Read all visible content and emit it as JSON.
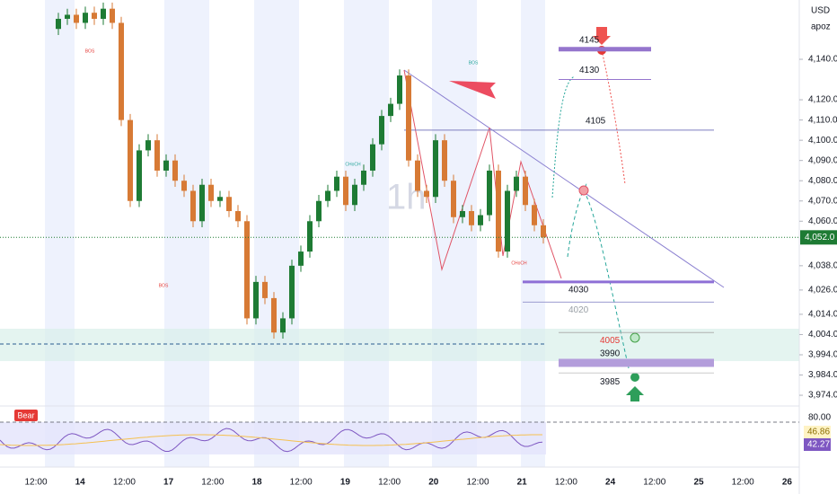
{
  "header": {
    "currency": "USD",
    "symbol": "apoz"
  },
  "chart_data": {
    "type": "candlestick",
    "open": [
      4155,
      4160,
      4162,
      4158,
      4163,
      4160,
      4165,
      4158,
      4110,
      4070,
      4095,
      4100,
      4085,
      4090,
      4080,
      4075,
      4060,
      4078,
      4070,
      4072,
      4065,
      4060,
      4012,
      4030,
      4022,
      4005,
      4012,
      4038,
      4045,
      4060,
      4070,
      4075,
      4082,
      4068,
      4078,
      4085,
      4098,
      4112,
      4118,
      4132,
      4090,
      4075,
      4072,
      4100,
      4080,
      4062,
      4065,
      4058,
      4063,
      4085,
      4045,
      4075,
      4082,
      4068,
      4058
    ],
    "high": [
      4163,
      4165,
      4165,
      4166,
      4166,
      4168,
      4168,
      4161,
      4113,
      4098,
      4103,
      4103,
      4093,
      4093,
      4083,
      4078,
      4081,
      4081,
      4075,
      4075,
      4068,
      4063,
      4033,
      4033,
      4025,
      4015,
      4041,
      4048,
      4063,
      4073,
      4078,
      4085,
      4085,
      4081,
      4088,
      4101,
      4115,
      4121,
      4135,
      4135,
      4093,
      4078,
      4103,
      4103,
      4083,
      4068,
      4068,
      4066,
      4088,
      4088,
      4078,
      4085,
      4085,
      4071,
      4061
    ],
    "low": [
      4152,
      4157,
      4155,
      4155,
      4157,
      4157,
      4155,
      4107,
      4067,
      4067,
      4092,
      4082,
      4082,
      4077,
      4072,
      4057,
      4057,
      4067,
      4067,
      4062,
      4057,
      4009,
      4009,
      4019,
      4002,
      4002,
      4009,
      4035,
      4042,
      4057,
      4067,
      4072,
      4065,
      4065,
      4075,
      4082,
      4095,
      4109,
      4115,
      4087,
      4072,
      4069,
      4069,
      4077,
      4059,
      4059,
      4055,
      4055,
      4060,
      4042,
      4042,
      4072,
      4065,
      4055,
      4049
    ],
    "close": [
      4160,
      4162,
      4158,
      4163,
      4160,
      4165,
      4158,
      4110,
      4070,
      4095,
      4100,
      4085,
      4090,
      4080,
      4075,
      4060,
      4078,
      4070,
      4072,
      4065,
      4060,
      4012,
      4030,
      4022,
      4005,
      4012,
      4038,
      4045,
      4060,
      4070,
      4075,
      4082,
      4068,
      4078,
      4085,
      4098,
      4112,
      4118,
      4132,
      4090,
      4075,
      4072,
      4100,
      4080,
      4062,
      4065,
      4058,
      4063,
      4085,
      4045,
      4075,
      4082,
      4068,
      4058,
      4052
    ],
    "up_color": "#1e7b34",
    "down_color": "#d77a35",
    "ylim": [
      3968.7,
      4169.3
    ],
    "yticks": [
      {
        "value": 4140,
        "label": "4,140.0"
      },
      {
        "value": 4120,
        "label": "4,120.0"
      },
      {
        "value": 4110,
        "label": "4,110.0"
      },
      {
        "value": 4100,
        "label": "4,100.0"
      },
      {
        "value": 4090,
        "label": "4,090.0"
      },
      {
        "value": 4080,
        "label": "4,080.0"
      },
      {
        "value": 4070,
        "label": "4,070.0"
      },
      {
        "value": 4060,
        "label": "4,060.0"
      },
      {
        "value": 4038,
        "label": "4,038.0"
      },
      {
        "value": 4026,
        "label": "4,026.0"
      },
      {
        "value": 4014,
        "label": "4,014.0"
      },
      {
        "value": 4004,
        "label": "4,004.0"
      },
      {
        "value": 3994,
        "label": "3,994.0"
      },
      {
        "value": 3984,
        "label": "3,984.0"
      },
      {
        "value": 3974,
        "label": "3,974.0"
      }
    ],
    "x_labels": [
      "12:00",
      "14",
      "12:00",
      "17",
      "12:00",
      "18",
      "12:00",
      "19",
      "12:00",
      "20",
      "12:00",
      "21",
      "12:00",
      "24",
      "12:00",
      "25",
      "12:00",
      "26"
    ],
    "last_price": {
      "value": 4052,
      "label": "4,052.0"
    },
    "levels": [
      4145,
      4130,
      4105,
      4030,
      4020,
      4005,
      3990,
      3985
    ],
    "annotations": [
      "BOS",
      "BOS",
      "BOS",
      "CHoCH",
      "CHoCH"
    ]
  },
  "indicator": {
    "badge": "Bear",
    "ticks": [
      {
        "value": 80,
        "label": "80.00"
      }
    ],
    "labels": [
      "46.86",
      "42.27"
    ]
  }
}
